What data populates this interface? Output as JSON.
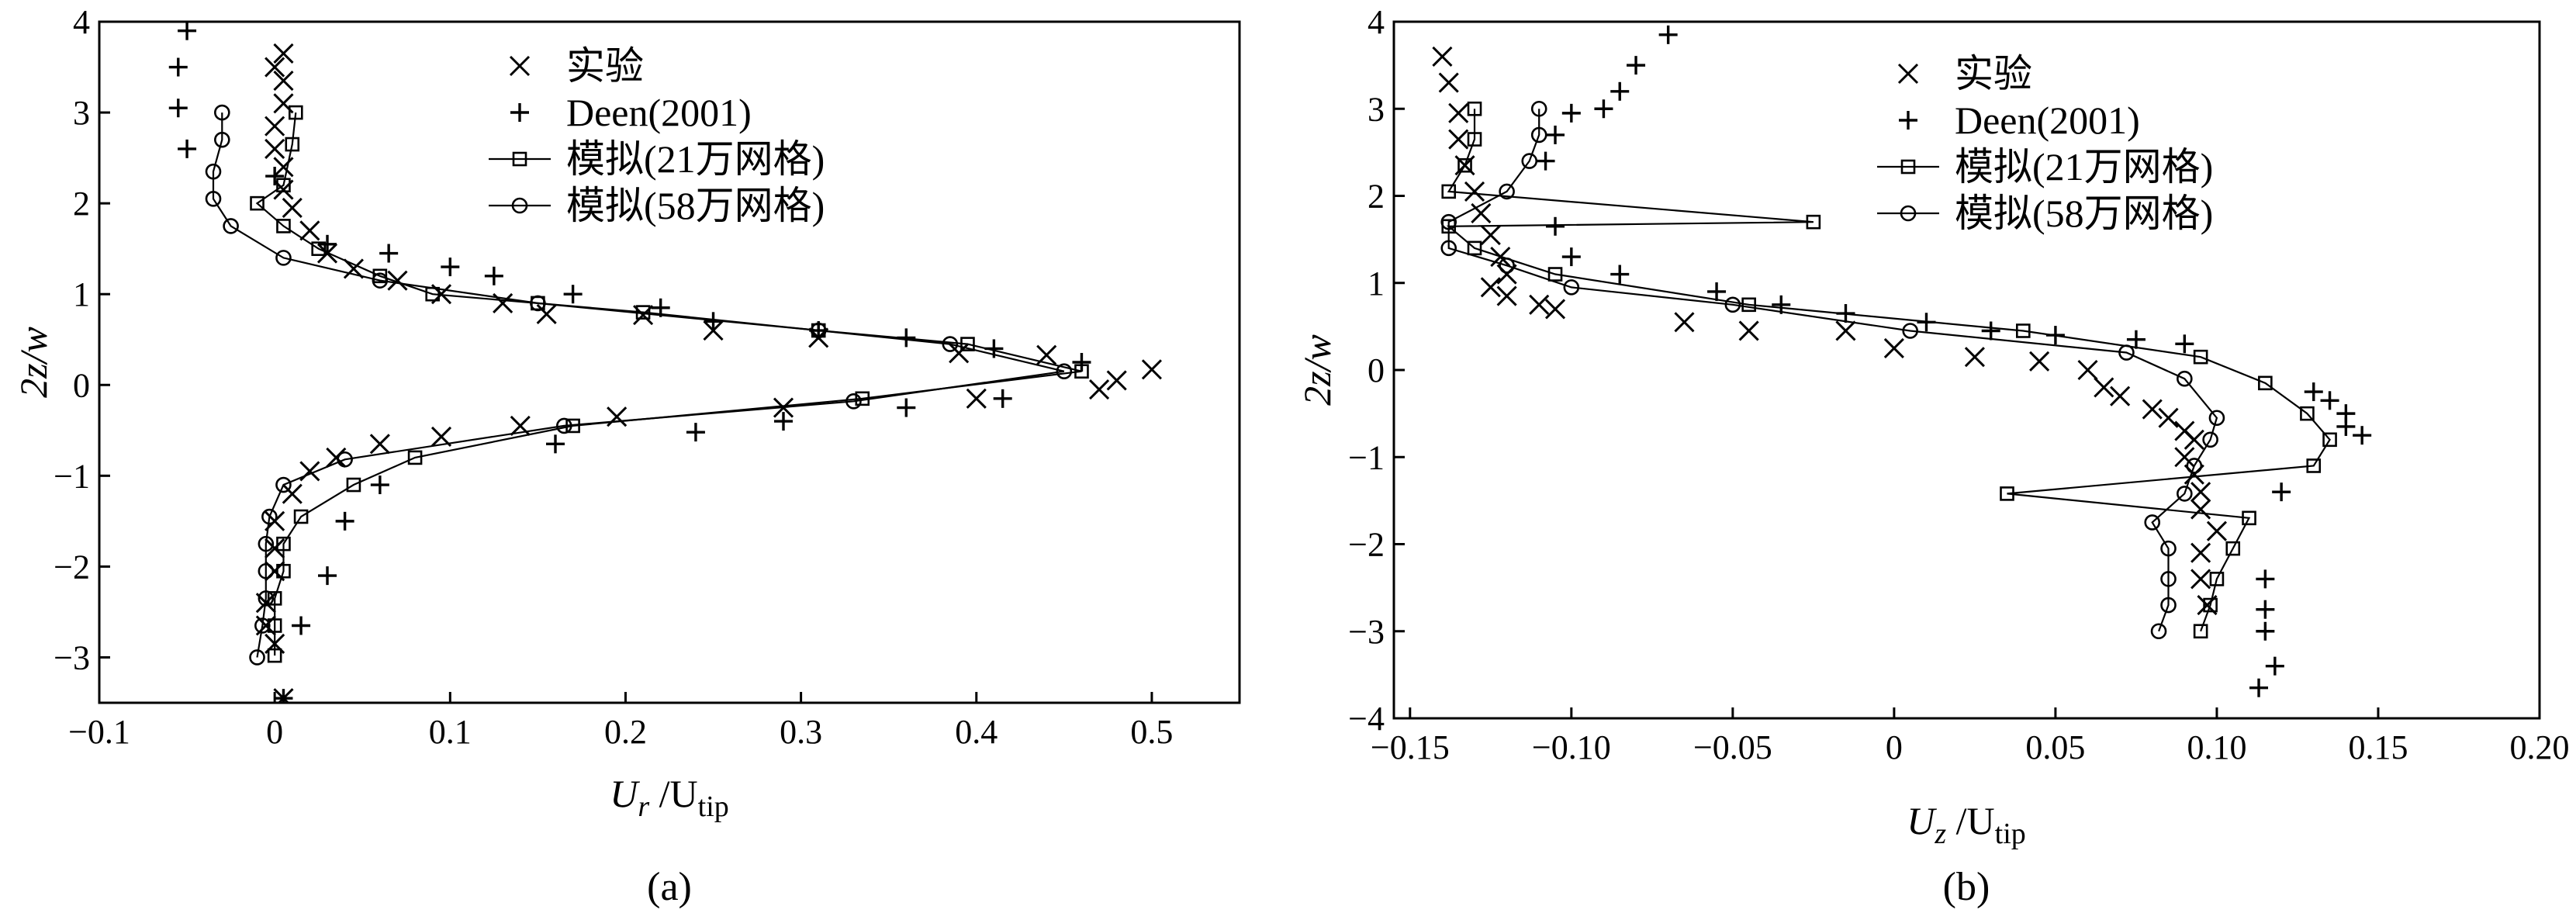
{
  "chart_data": [
    {
      "type": "scatter",
      "panel_label": "(a)",
      "xlabel": {
        "main": "U",
        "sub": "r",
        "sep": " /U",
        "sub2": "tip"
      },
      "ylabel": "2z/w",
      "xlim": [
        -0.1,
        0.55
      ],
      "ylim": [
        -3.5,
        4
      ],
      "xticks": [
        {
          "v": -0.1,
          "label": "−0.1"
        },
        {
          "v": 0,
          "label": "0"
        },
        {
          "v": 0.1,
          "label": "0.1"
        },
        {
          "v": 0.2,
          "label": "0.2"
        },
        {
          "v": 0.3,
          "label": "0.3"
        },
        {
          "v": 0.4,
          "label": "0.4"
        },
        {
          "v": 0.5,
          "label": "0.5"
        }
      ],
      "yticks": [
        {
          "v": 4,
          "label": "4"
        },
        {
          "v": 3,
          "label": "3"
        },
        {
          "v": 2,
          "label": "2"
        },
        {
          "v": 1,
          "label": "1"
        },
        {
          "v": 0,
          "label": "0"
        },
        {
          "v": -1,
          "label": "−1"
        },
        {
          "v": -2,
          "label": "−2"
        },
        {
          "v": -3,
          "label": "−3"
        }
      ],
      "legend_position": "top-center",
      "series": [
        {
          "name": "实验",
          "marker": "cross",
          "line": false,
          "points": [
            [
              0.005,
              3.65
            ],
            [
              0.0,
              3.5
            ],
            [
              0.005,
              3.35
            ],
            [
              0.005,
              3.1
            ],
            [
              0.0,
              2.85
            ],
            [
              0.0,
              2.6
            ],
            [
              0.005,
              2.4
            ],
            [
              0.005,
              2.15
            ],
            [
              0.01,
              1.95
            ],
            [
              0.02,
              1.7
            ],
            [
              0.03,
              1.45
            ],
            [
              0.045,
              1.28
            ],
            [
              0.07,
              1.15
            ],
            [
              0.095,
              1.0
            ],
            [
              0.13,
              0.9
            ],
            [
              0.155,
              0.78
            ],
            [
              0.21,
              0.77
            ],
            [
              0.25,
              0.6
            ],
            [
              0.31,
              0.52
            ],
            [
              0.39,
              0.35
            ],
            [
              0.44,
              0.33
            ],
            [
              0.48,
              0.05
            ],
            [
              0.5,
              0.17
            ],
            [
              0.47,
              -0.05
            ],
            [
              0.4,
              -0.15
            ],
            [
              0.29,
              -0.25
            ],
            [
              0.195,
              -0.35
            ],
            [
              0.14,
              -0.45
            ],
            [
              0.095,
              -0.57
            ],
            [
              0.06,
              -0.65
            ],
            [
              0.035,
              -0.8
            ],
            [
              0.02,
              -0.95
            ],
            [
              0.01,
              -1.2
            ],
            [
              0.0,
              -1.5
            ],
            [
              0.0,
              -1.8
            ],
            [
              0.0,
              -2.05
            ],
            [
              -0.005,
              -2.4
            ],
            [
              -0.005,
              -2.65
            ],
            [
              0.0,
              -2.85
            ],
            [
              0.005,
              -3.45
            ]
          ]
        },
        {
          "name": "Deen(2001)",
          "marker": "plus",
          "line": false,
          "points": [
            [
              -0.05,
              3.9
            ],
            [
              -0.055,
              3.5
            ],
            [
              -0.055,
              3.05
            ],
            [
              -0.05,
              2.6
            ],
            [
              0.0,
              2.3
            ],
            [
              0.03,
              1.55
            ],
            [
              0.065,
              1.45
            ],
            [
              0.1,
              1.3
            ],
            [
              0.125,
              1.2
            ],
            [
              0.17,
              1.0
            ],
            [
              0.22,
              0.85
            ],
            [
              0.25,
              0.7
            ],
            [
              0.31,
              0.6
            ],
            [
              0.36,
              0.52
            ],
            [
              0.41,
              0.4
            ],
            [
              0.46,
              0.25
            ],
            [
              0.415,
              -0.15
            ],
            [
              0.36,
              -0.25
            ],
            [
              0.29,
              -0.4
            ],
            [
              0.24,
              -0.52
            ],
            [
              0.16,
              -0.65
            ],
            [
              0.06,
              -1.1
            ],
            [
              0.04,
              -1.5
            ],
            [
              0.03,
              -2.1
            ],
            [
              0.015,
              -2.65
            ],
            [
              0.005,
              -3.45
            ]
          ]
        },
        {
          "name": "模拟(21万网格)",
          "marker": "square",
          "line": true,
          "points": [
            [
              0.012,
              3.0
            ],
            [
              0.01,
              2.65
            ],
            [
              0.005,
              2.2
            ],
            [
              -0.01,
              2.0
            ],
            [
              0.005,
              1.75
            ],
            [
              0.025,
              1.5
            ],
            [
              0.06,
              1.2
            ],
            [
              0.09,
              1.0
            ],
            [
              0.15,
              0.9
            ],
            [
              0.21,
              0.8
            ],
            [
              0.31,
              0.6
            ],
            [
              0.395,
              0.45
            ],
            [
              0.46,
              0.15
            ],
            [
              0.335,
              -0.15
            ],
            [
              0.17,
              -0.45
            ],
            [
              0.08,
              -0.8
            ],
            [
              0.045,
              -1.1
            ],
            [
              0.015,
              -1.45
            ],
            [
              0.005,
              -1.75
            ],
            [
              0.005,
              -2.05
            ],
            [
              0.0,
              -2.35
            ],
            [
              0.0,
              -2.65
            ],
            [
              0.0,
              -2.98
            ]
          ]
        },
        {
          "name": "模拟(58万网格)",
          "marker": "circle",
          "line": true,
          "points": [
            [
              -0.03,
              3.0
            ],
            [
              -0.03,
              2.7
            ],
            [
              -0.035,
              2.35
            ],
            [
              -0.035,
              2.05
            ],
            [
              -0.025,
              1.75
            ],
            [
              0.005,
              1.4
            ],
            [
              0.06,
              1.15
            ],
            [
              0.15,
              0.9
            ],
            [
              0.31,
              0.6
            ],
            [
              0.385,
              0.45
            ],
            [
              0.45,
              0.15
            ],
            [
              0.33,
              -0.18
            ],
            [
              0.165,
              -0.45
            ],
            [
              0.04,
              -0.82
            ],
            [
              0.005,
              -1.1
            ],
            [
              -0.003,
              -1.45
            ],
            [
              -0.005,
              -1.75
            ],
            [
              -0.005,
              -2.05
            ],
            [
              -0.005,
              -2.35
            ],
            [
              -0.007,
              -2.65
            ],
            [
              -0.01,
              -3.0
            ]
          ]
        }
      ]
    },
    {
      "type": "scatter",
      "panel_label": "(b)",
      "xlabel": {
        "main": "U",
        "sub": "z",
        "sep": " /U",
        "sub2": "tip"
      },
      "ylabel": "2z/w",
      "xlim": [
        -0.155,
        0.2
      ],
      "ylim": [
        -4,
        4
      ],
      "xticks": [
        {
          "v": -0.15,
          "label": "−0.15"
        },
        {
          "v": -0.1,
          "label": "−0.10"
        },
        {
          "v": -0.05,
          "label": "−0.05"
        },
        {
          "v": 0,
          "label": "0"
        },
        {
          "v": 0.05,
          "label": "0.05"
        },
        {
          "v": 0.1,
          "label": "0.10"
        },
        {
          "v": 0.15,
          "label": "0.15"
        },
        {
          "v": 0.2,
          "label": "0.20"
        }
      ],
      "yticks": [
        {
          "v": 4,
          "label": "4"
        },
        {
          "v": 3,
          "label": "3"
        },
        {
          "v": 2,
          "label": "2"
        },
        {
          "v": 1,
          "label": "1"
        },
        {
          "v": 0,
          "label": "0"
        },
        {
          "v": -1,
          "label": "−1"
        },
        {
          "v": -2,
          "label": "−2"
        },
        {
          "v": -3,
          "label": "−3"
        },
        {
          "v": -4,
          "label": "−4"
        }
      ],
      "legend_position": "top-center",
      "series": [
        {
          "name": "实验",
          "marker": "cross",
          "line": false,
          "points": [
            [
              -0.14,
              3.6
            ],
            [
              -0.138,
              3.3
            ],
            [
              -0.135,
              2.95
            ],
            [
              -0.135,
              2.65
            ],
            [
              -0.133,
              2.35
            ],
            [
              -0.13,
              2.05
            ],
            [
              -0.128,
              1.8
            ],
            [
              -0.125,
              1.55
            ],
            [
              -0.122,
              1.3
            ],
            [
              -0.12,
              1.1
            ],
            [
              -0.125,
              0.95
            ],
            [
              -0.12,
              0.85
            ],
            [
              -0.11,
              0.75
            ],
            [
              -0.105,
              0.7
            ],
            [
              -0.065,
              0.55
            ],
            [
              -0.045,
              0.45
            ],
            [
              -0.015,
              0.45
            ],
            [
              0.0,
              0.25
            ],
            [
              0.025,
              0.15
            ],
            [
              0.045,
              0.1
            ],
            [
              0.06,
              0.0
            ],
            [
              0.065,
              -0.2
            ],
            [
              0.07,
              -0.3
            ],
            [
              0.08,
              -0.45
            ],
            [
              0.085,
              -0.55
            ],
            [
              0.09,
              -0.7
            ],
            [
              0.093,
              -0.8
            ],
            [
              0.09,
              -1.0
            ],
            [
              0.093,
              -1.2
            ],
            [
              0.095,
              -1.4
            ],
            [
              0.095,
              -1.6
            ],
            [
              0.1,
              -1.85
            ],
            [
              0.095,
              -2.1
            ],
            [
              0.095,
              -2.4
            ],
            [
              0.097,
              -2.7
            ]
          ]
        },
        {
          "name": "Deen(2001)",
          "marker": "plus",
          "line": false,
          "points": [
            [
              -0.07,
              3.85
            ],
            [
              -0.08,
              3.5
            ],
            [
              -0.085,
              3.2
            ],
            [
              -0.09,
              3.0
            ],
            [
              -0.1,
              2.95
            ],
            [
              -0.105,
              2.7
            ],
            [
              -0.108,
              2.4
            ],
            [
              -0.105,
              1.65
            ],
            [
              -0.1,
              1.3
            ],
            [
              -0.085,
              1.1
            ],
            [
              -0.055,
              0.9
            ],
            [
              -0.035,
              0.75
            ],
            [
              -0.015,
              0.65
            ],
            [
              0.01,
              0.55
            ],
            [
              0.03,
              0.45
            ],
            [
              0.05,
              0.4
            ],
            [
              0.075,
              0.35
            ],
            [
              0.09,
              0.3
            ],
            [
              0.13,
              -0.25
            ],
            [
              0.135,
              -0.35
            ],
            [
              0.14,
              -0.5
            ],
            [
              0.14,
              -0.65
            ],
            [
              0.145,
              -0.75
            ],
            [
              0.12,
              -1.4
            ],
            [
              0.115,
              -2.4
            ],
            [
              0.115,
              -2.75
            ],
            [
              0.115,
              -3.0
            ],
            [
              0.118,
              -3.4
            ],
            [
              0.113,
              -3.65
            ]
          ]
        },
        {
          "name": "模拟(21万网格)",
          "marker": "square",
          "line": true,
          "points": [
            [
              -0.13,
              3.0
            ],
            [
              -0.13,
              2.65
            ],
            [
              -0.133,
              2.35
            ],
            [
              -0.138,
              2.05
            ],
            [
              -0.025,
              1.7
            ],
            [
              -0.138,
              1.65
            ],
            [
              -0.13,
              1.4
            ],
            [
              -0.105,
              1.1
            ],
            [
              -0.045,
              0.75
            ],
            [
              0.04,
              0.45
            ],
            [
              0.095,
              0.15
            ],
            [
              0.115,
              -0.15
            ],
            [
              0.128,
              -0.5
            ],
            [
              0.135,
              -0.8
            ],
            [
              0.13,
              -1.1
            ],
            [
              0.035,
              -1.42
            ],
            [
              0.11,
              -1.7
            ],
            [
              0.105,
              -2.05
            ],
            [
              0.1,
              -2.4
            ],
            [
              0.098,
              -2.7
            ],
            [
              0.095,
              -3.0
            ]
          ]
        },
        {
          "name": "模拟(58万网格)",
          "marker": "circle",
          "line": true,
          "points": [
            [
              -0.11,
              3.0
            ],
            [
              -0.11,
              2.7
            ],
            [
              -0.113,
              2.4
            ],
            [
              -0.12,
              2.05
            ],
            [
              -0.138,
              1.7
            ],
            [
              -0.138,
              1.4
            ],
            [
              -0.12,
              1.2
            ],
            [
              -0.1,
              0.95
            ],
            [
              -0.05,
              0.75
            ],
            [
              0.005,
              0.45
            ],
            [
              0.072,
              0.2
            ],
            [
              0.09,
              -0.1
            ],
            [
              0.1,
              -0.55
            ],
            [
              0.098,
              -0.8
            ],
            [
              0.093,
              -1.1
            ],
            [
              0.09,
              -1.42
            ],
            [
              0.08,
              -1.75
            ],
            [
              0.085,
              -2.05
            ],
            [
              0.085,
              -2.4
            ],
            [
              0.085,
              -2.7
            ],
            [
              0.082,
              -3.0
            ]
          ]
        }
      ]
    }
  ]
}
